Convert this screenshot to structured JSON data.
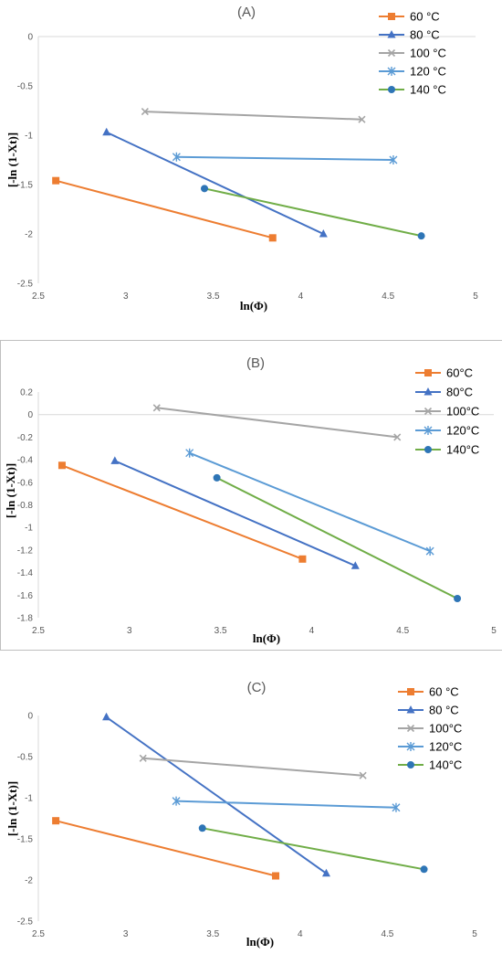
{
  "chart_data": [
    {
      "type": "line",
      "title": "(A)",
      "xlabel": "ln(Φ)",
      "ylabel": "[-ln (1-Xt)]",
      "xlim": [
        2.5,
        5
      ],
      "ylim": [
        -2.5,
        0
      ],
      "xticks": [
        "2.5",
        "3",
        "3.5",
        "4",
        "4.5",
        "5"
      ],
      "yticks": [
        "0",
        "-0.5",
        "-1",
        "-1.5",
        "-2",
        "-2.5"
      ],
      "legend_position": "top-right",
      "series": [
        {
          "name": "60 °C",
          "color": "#ED7D31",
          "marker": "square",
          "points": [
            [
              2.6,
              -1.46
            ],
            [
              3.84,
              -2.04
            ]
          ]
        },
        {
          "name": "80 °C",
          "color": "#4472C4",
          "marker": "triangle",
          "points": [
            [
              2.89,
              -0.97
            ],
            [
              4.13,
              -2.0
            ]
          ]
        },
        {
          "name": "100 °C",
          "color": "#A5A5A5",
          "marker": "x",
          "points": [
            [
              3.11,
              -0.76
            ],
            [
              4.35,
              -0.84
            ]
          ]
        },
        {
          "name": "120 °C",
          "color": "#5B9BD5",
          "marker": "star",
          "points": [
            [
              3.29,
              -1.22
            ],
            [
              4.53,
              -1.25
            ]
          ]
        },
        {
          "name": "140 °C",
          "color": "#70AD47",
          "marker": "circle",
          "markerColor": "#2E75B6",
          "points": [
            [
              3.45,
              -1.54
            ],
            [
              4.69,
              -2.02
            ]
          ]
        }
      ]
    },
    {
      "type": "line",
      "title": "(B)",
      "xlabel": "ln(Φ)",
      "ylabel": "[-ln (1-Xt)]",
      "xlim": [
        2.5,
        5
      ],
      "ylim": [
        -1.8,
        0.2
      ],
      "xticks": [
        "2.5",
        "3",
        "3.5",
        "4",
        "4.5",
        "5"
      ],
      "yticks": [
        "0.2",
        "0",
        "-0.2",
        "-0.4",
        "-0.6",
        "-0.8",
        "-1",
        "-1.2",
        "-1.4",
        "-1.6",
        "-1.8"
      ],
      "legend_position": "top-right",
      "series": [
        {
          "name": "60°C",
          "color": "#ED7D31",
          "marker": "square",
          "points": [
            [
              2.63,
              -0.45
            ],
            [
              3.95,
              -1.28
            ]
          ]
        },
        {
          "name": "80°C",
          "color": "#4472C4",
          "marker": "triangle",
          "points": [
            [
              2.92,
              -0.41
            ],
            [
              4.24,
              -1.34
            ]
          ]
        },
        {
          "name": "100°C",
          "color": "#A5A5A5",
          "marker": "x",
          "points": [
            [
              3.15,
              0.06
            ],
            [
              4.47,
              -0.2
            ]
          ]
        },
        {
          "name": "120°C",
          "color": "#5B9BD5",
          "marker": "star",
          "points": [
            [
              3.33,
              -0.34
            ],
            [
              4.65,
              -1.21
            ]
          ]
        },
        {
          "name": "140°C",
          "color": "#70AD47",
          "marker": "circle",
          "markerColor": "#2E75B6",
          "points": [
            [
              3.48,
              -0.56
            ],
            [
              4.8,
              -1.63
            ]
          ]
        }
      ]
    },
    {
      "type": "line",
      "title": "(C)",
      "xlabel": "ln(Φ)",
      "ylabel": "[-ln (1-Xt)]",
      "xlim": [
        2.5,
        5
      ],
      "ylim": [
        -2.5,
        0
      ],
      "xticks": [
        "2.5",
        "3",
        "3.5",
        "4",
        "4.5",
        "5"
      ],
      "yticks": [
        "0",
        "-0.5",
        "-1",
        "-1.5",
        "-2",
        "-2.5"
      ],
      "legend_position": "top-right",
      "series": [
        {
          "name": "60 °C",
          "color": "#ED7D31",
          "marker": "square",
          "points": [
            [
              2.6,
              -1.28
            ],
            [
              3.86,
              -1.95
            ]
          ]
        },
        {
          "name": "80 °C",
          "color": "#4472C4",
          "marker": "triangle",
          "points": [
            [
              2.89,
              -0.02
            ],
            [
              4.15,
              -1.92
            ]
          ]
        },
        {
          "name": "100°C",
          "color": "#A5A5A5",
          "marker": "x",
          "points": [
            [
              3.1,
              -0.52
            ],
            [
              4.36,
              -0.73
            ]
          ]
        },
        {
          "name": "120°C",
          "color": "#5B9BD5",
          "marker": "star",
          "points": [
            [
              3.29,
              -1.04
            ],
            [
              4.55,
              -1.12
            ]
          ]
        },
        {
          "name": "140°C",
          "color": "#70AD47",
          "marker": "circle",
          "markerColor": "#2E75B6",
          "points": [
            [
              3.44,
              -1.37
            ],
            [
              4.71,
              -1.87
            ]
          ]
        }
      ]
    }
  ]
}
